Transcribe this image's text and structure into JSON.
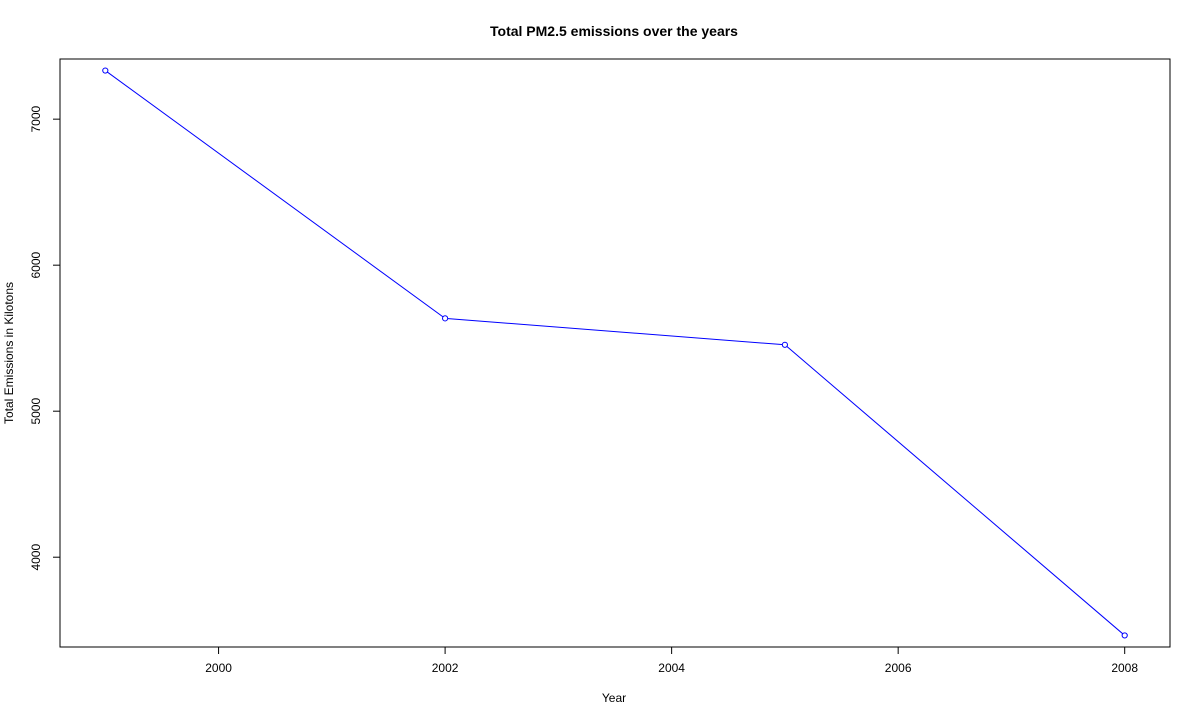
{
  "chart_data": {
    "type": "line",
    "title": "Total PM2.5 emissions over the years",
    "xlabel": "Year",
    "ylabel": "Total Emissions in Kilotons",
    "x": [
      1999,
      2002,
      2005,
      2008
    ],
    "series": [
      {
        "values": [
          7332.97,
          5635.78,
          5454.7,
          3464.21
        ],
        "color": "#0000ff"
      }
    ],
    "xlim": [
      1998.6,
      2008.4
    ],
    "ylim": [
      3385,
      7412
    ],
    "xticks": [
      2000,
      2002,
      2004,
      2006,
      2008
    ],
    "yticks": [
      4000,
      5000,
      6000,
      7000
    ],
    "grid": false,
    "markers": "open-circle",
    "legend": "none"
  }
}
